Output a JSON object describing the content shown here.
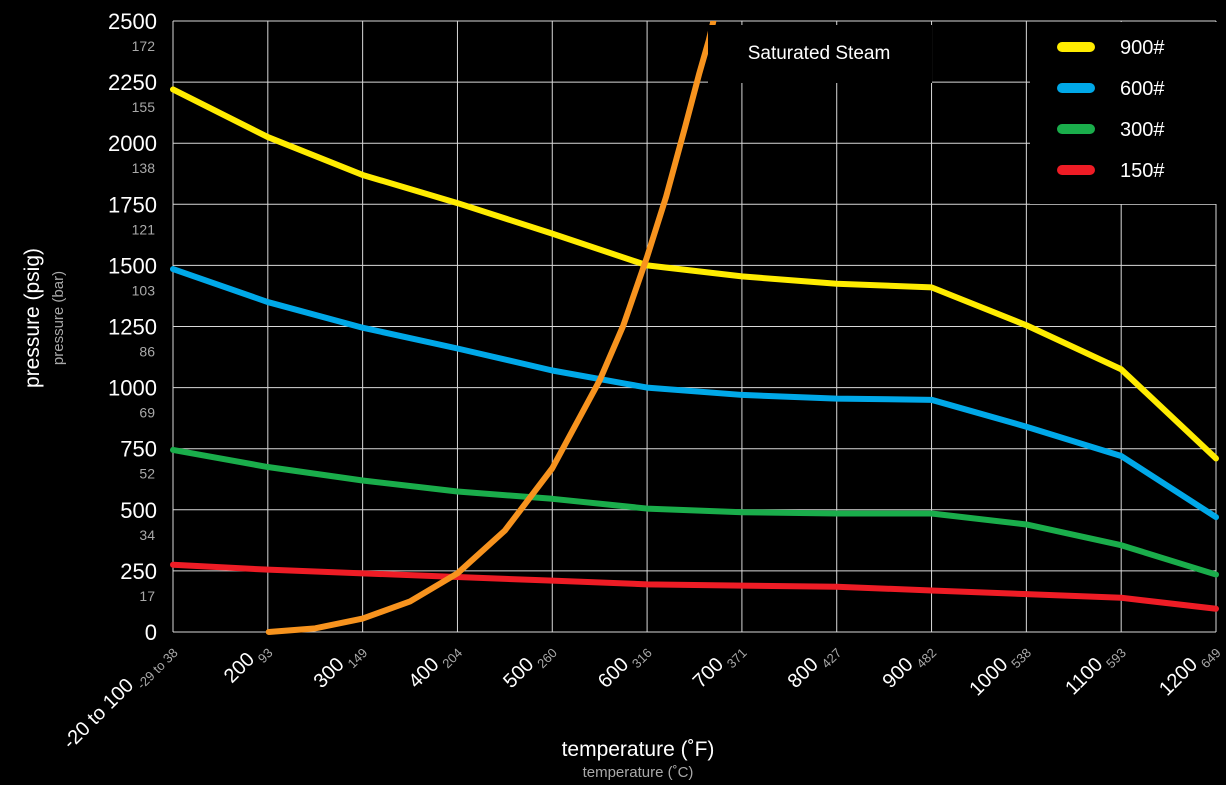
{
  "chart_data": {
    "type": "line",
    "xlabel": "temperature (˚F)",
    "xlabel_secondary": "temperature (˚C)",
    "ylabel": "pressure (psig)",
    "ylabel_secondary": "pressure (bar)",
    "x_categories": [
      "-20 to 100",
      "200",
      "300",
      "400",
      "500",
      "600",
      "700",
      "800",
      "900",
      "1000",
      "1100",
      "1200"
    ],
    "x_categories_secondary": [
      "-29 to 38",
      "93",
      "149",
      "204",
      "260",
      "316",
      "371",
      "427",
      "482",
      "538",
      "593",
      "649"
    ],
    "y_ticks": [
      "0",
      "250",
      "500",
      "750",
      "1000",
      "1250",
      "1500",
      "1750",
      "2000",
      "2250",
      "2500"
    ],
    "y_ticks_secondary": [
      "",
      "17",
      "34",
      "52",
      "69",
      "86",
      "103",
      "121",
      "138",
      "155",
      "172"
    ],
    "ylim": [
      0,
      2500
    ],
    "grid": true,
    "legend_position": "top-right",
    "series": [
      {
        "name": "900#",
        "color": "#ffec00",
        "values": [
          2220,
          2025,
          1870,
          1755,
          1630,
          1500,
          1455,
          1425,
          1410,
          1255,
          1075,
          710
        ]
      },
      {
        "name": "600#",
        "color": "#00a8e8",
        "values": [
          1485,
          1350,
          1245,
          1160,
          1070,
          1000,
          970,
          955,
          950,
          840,
          720,
          470
        ]
      },
      {
        "name": "300#",
        "color": "#1aad4b",
        "values": [
          745,
          675,
          620,
          575,
          545,
          505,
          490,
          485,
          485,
          440,
          355,
          235
        ]
      },
      {
        "name": "150#",
        "color": "#ee1c25",
        "values": [
          275,
          255,
          240,
          225,
          210,
          195,
          190,
          185,
          170,
          155,
          140,
          95
        ]
      }
    ],
    "saturated_steam": {
      "label": "Saturated Steam",
      "color": "#f7931e",
      "x": [
        201,
        250,
        300,
        350,
        400,
        450,
        500,
        550,
        575,
        600,
        620,
        640,
        655,
        665,
        673
      ],
      "y": [
        0,
        15,
        55,
        125,
        240,
        415,
        670,
        1030,
        1255,
        1535,
        1780,
        2065,
        2285,
        2420,
        2550
      ]
    }
  }
}
